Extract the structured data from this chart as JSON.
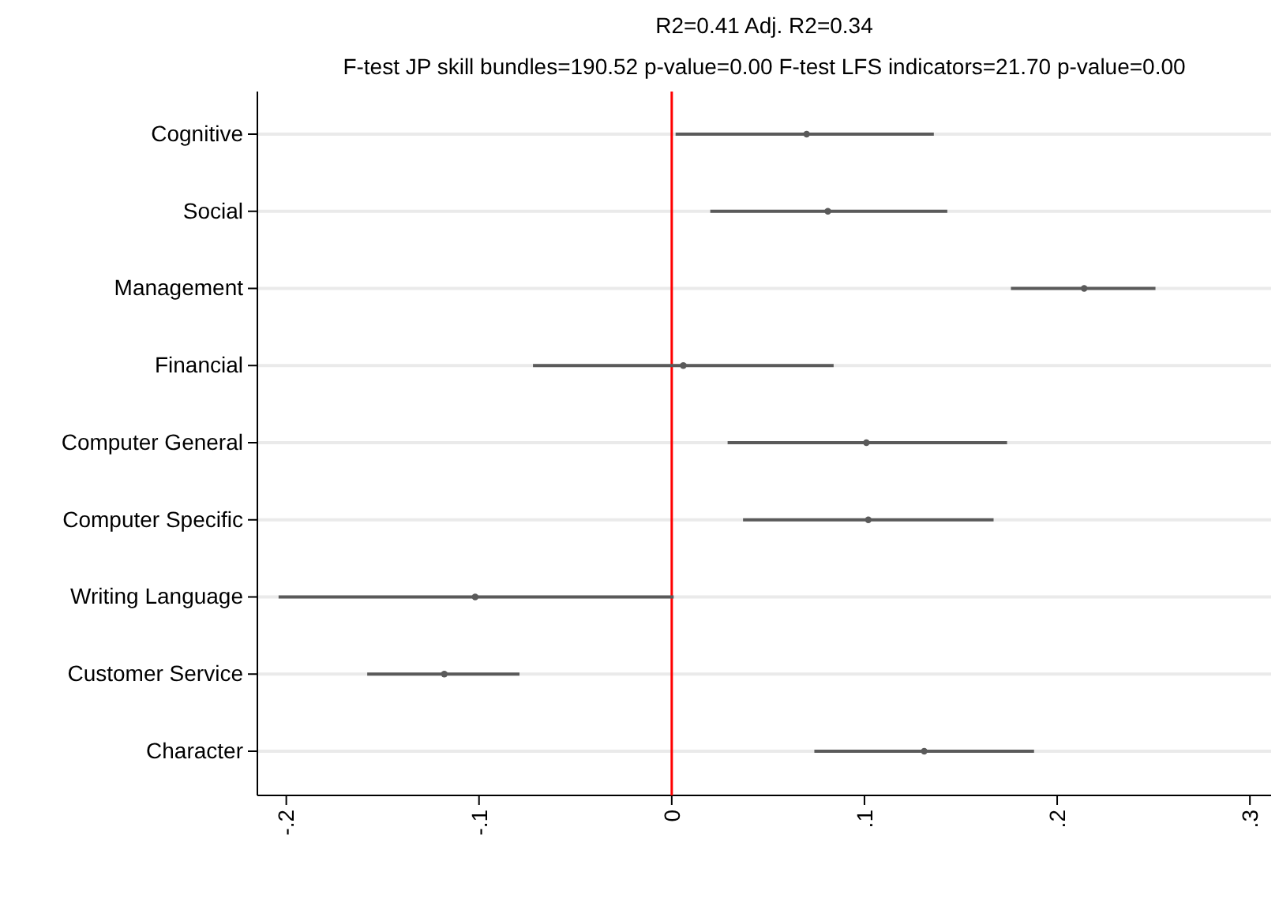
{
  "chart_data": {
    "type": "scatter",
    "orientation": "horizontal",
    "title": "R2=0.41 Adj. R2=0.34",
    "subtitle": "F-test JP skill bundles=190.52 p-value=0.00 F-test LFS indicators=21.70 p-value=0.00",
    "categories": [
      "Cognitive",
      "Social",
      "Management",
      "Financial",
      "Computer General",
      "Computer Specific",
      "Writing Language",
      "Customer Service",
      "Character"
    ],
    "series": [
      {
        "color": "#5a5a5a",
        "values": [
          0.07,
          0.081,
          0.214,
          0.006,
          0.101,
          0.102,
          -0.102,
          -0.118,
          0.131
        ],
        "errors": [
          [
            0.002,
            0.136
          ],
          [
            0.02,
            0.143
          ],
          [
            0.176,
            0.251
          ],
          [
            -0.072,
            0.084
          ],
          [
            0.029,
            0.174
          ],
          [
            0.037,
            0.167
          ],
          [
            -0.204,
            0.001
          ],
          [
            -0.158,
            -0.079
          ],
          [
            0.074,
            0.188
          ]
        ]
      }
    ],
    "xlim": [
      -0.215,
      0.311
    ],
    "xticks": [
      {
        "value": -0.2,
        "label": "-.2"
      },
      {
        "value": -0.1,
        "label": "-.1"
      },
      0,
      {
        "value": 0.1,
        "label": ".1"
      },
      {
        "value": 0.2,
        "label": ".2"
      },
      {
        "value": 0.3,
        "label": ".3"
      }
    ],
    "grid": "y",
    "marker": "circle",
    "ref_lines": [
      {
        "axis": "x",
        "value": 0,
        "color": "#ff0000"
      }
    ]
  }
}
